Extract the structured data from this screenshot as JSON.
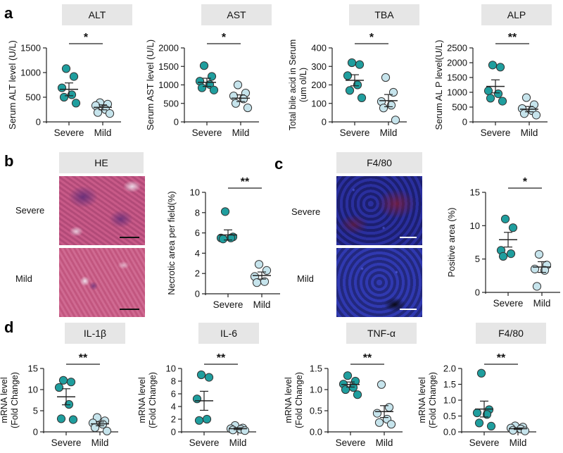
{
  "panel_labels": {
    "a": "a",
    "b": "b",
    "c": "c",
    "d": "d"
  },
  "colors": {
    "severe": "#1f9e9e",
    "mild": "#c6e4ec",
    "stroke": "#333333",
    "he_tissue": "#b24a78",
    "he_dark": "#5c2a78",
    "fl_blue": "#2a2f9e",
    "fl_red": "#7a1a2a"
  },
  "micrographs": {
    "he": {
      "title": "HE",
      "rows": [
        "Severe",
        "Mild"
      ]
    },
    "f480": {
      "title": "F4/80",
      "rows": [
        "Severe",
        "Mild"
      ]
    }
  },
  "chart_data": [
    {
      "id": "alt",
      "type": "scatter",
      "title": "ALT",
      "ylabel": "Serum ALT level  (U/L)",
      "ylabel2": "",
      "categories": [
        "Severe",
        "Mild"
      ],
      "ylim": [
        0,
        1500
      ],
      "yticks": [
        0,
        500,
        1000,
        1500
      ],
      "yticklabels": [
        "0",
        "500",
        "1000",
        "1500"
      ],
      "significance": "*",
      "series": [
        {
          "name": "Severe",
          "values": [
            1080,
            920,
            690,
            550,
            500,
            380
          ],
          "mean": 660,
          "sem": 130
        },
        {
          "name": "Mild",
          "values": [
            390,
            360,
            330,
            250,
            190,
            170
          ],
          "mean": 295,
          "sem": 50
        }
      ]
    },
    {
      "id": "ast",
      "type": "scatter",
      "title": "AST",
      "ylabel": "Serum AST level (U/L)",
      "ylabel2": "",
      "categories": [
        "Severe",
        "Mild"
      ],
      "ylim": [
        0,
        2000
      ],
      "yticks": [
        0,
        500,
        1000,
        1500,
        2000
      ],
      "yticklabels": [
        "0",
        "500",
        "1000",
        "1500",
        "2000"
      ],
      "significance": "*",
      "series": [
        {
          "name": "Severe",
          "values": [
            1520,
            1230,
            1100,
            1010,
            920,
            860
          ],
          "mean": 1070,
          "sem": 110
        },
        {
          "name": "Mild",
          "values": [
            1000,
            780,
            700,
            620,
            500,
            380
          ],
          "mean": 640,
          "sem": 90
        }
      ]
    },
    {
      "id": "tba",
      "type": "scatter",
      "title": "TBA",
      "ylabel": "Total bile acid in Serum",
      "ylabel2": "(um ol/L)",
      "categories": [
        "Severe",
        "Mild"
      ],
      "ylim": [
        0,
        400
      ],
      "yticks": [
        0,
        100,
        200,
        300,
        400
      ],
      "yticklabels": [
        "0",
        "100",
        "200",
        "300",
        "400"
      ],
      "significance": "*",
      "series": [
        {
          "name": "Severe",
          "values": [
            320,
            310,
            250,
            200,
            170,
            130
          ],
          "mean": 225,
          "sem": 30
        },
        {
          "name": "Mild",
          "values": [
            240,
            160,
            110,
            90,
            75,
            10
          ],
          "mean": 115,
          "sem": 33
        }
      ]
    },
    {
      "id": "alp",
      "type": "scatter",
      "title": "ALP",
      "ylabel": "Serum AL P level(U/L)",
      "ylabel2": "",
      "categories": [
        "Severe",
        "Mild"
      ],
      "ylim": [
        0,
        2500
      ],
      "yticks": [
        0,
        500,
        1000,
        1500,
        2000,
        2500
      ],
      "yticklabels": [
        "0",
        "500",
        "1000",
        "1500",
        "2000",
        "2500"
      ],
      "significance": "**",
      "series": [
        {
          "name": "Severe",
          "values": [
            1920,
            1850,
            1050,
            950,
            800,
            700
          ],
          "mean": 1200,
          "sem": 220
        },
        {
          "name": "Mild",
          "values": [
            820,
            580,
            450,
            380,
            280,
            230
          ],
          "mean": 430,
          "sem": 90
        }
      ]
    },
    {
      "id": "he_necrotic",
      "type": "scatter",
      "title": "",
      "ylabel": "Necrotic area per field(%)",
      "ylabel2": "",
      "categories": [
        "Severe",
        "Mild"
      ],
      "ylim": [
        0,
        10
      ],
      "yticks": [
        0,
        2,
        4,
        6,
        8,
        10
      ],
      "yticklabels": [
        "0",
        "2",
        "4",
        "6",
        "8",
        "10"
      ],
      "significance": "**",
      "series": [
        {
          "name": "Severe",
          "values": [
            8.1,
            5.6,
            5.5,
            5.5,
            5.4
          ],
          "mean": 5.8,
          "sem": 0.5
        },
        {
          "name": "Mild",
          "values": [
            2.9,
            2.3,
            1.7,
            1.2,
            1.1
          ],
          "mean": 1.8,
          "sem": 0.35
        }
      ]
    },
    {
      "id": "f480_positive",
      "type": "scatter",
      "title": "",
      "ylabel": "Positive area (%)",
      "ylabel2": "",
      "categories": [
        "Severe",
        "Mild"
      ],
      "ylim": [
        0,
        15
      ],
      "yticks": [
        0,
        5,
        10,
        15
      ],
      "yticklabels": [
        "0",
        "5",
        "10",
        "15"
      ],
      "significance": "*",
      "series": [
        {
          "name": "Severe",
          "values": [
            11,
            9.7,
            6.3,
            5.8,
            5.4
          ],
          "mean": 7.9,
          "sem": 1.1
        },
        {
          "name": "Mild",
          "values": [
            5.7,
            4.1,
            3.5,
            3.3,
            0.9
          ],
          "mean": 3.8,
          "sem": 0.8
        }
      ]
    },
    {
      "id": "il1b",
      "type": "scatter",
      "title": "IL-1β",
      "ylabel": "mRNA level",
      "ylabel2": "(Fold Change)",
      "categories": [
        "Severe",
        "Mild"
      ],
      "ylim": [
        0,
        15
      ],
      "yticks": [
        0,
        5,
        10,
        15
      ],
      "yticklabels": [
        "0",
        "5",
        "10",
        "15"
      ],
      "significance": "**",
      "series": [
        {
          "name": "Severe",
          "values": [
            12.2,
            11.8,
            10.5,
            6.5,
            3.1,
            2.9
          ],
          "mean": 8.3,
          "sem": 1.9
        },
        {
          "name": "Mild",
          "values": [
            3.4,
            2.6,
            2.1,
            1.8,
            1.0,
            0.2
          ],
          "mean": 1.9,
          "sem": 0.45
        }
      ]
    },
    {
      "id": "il6",
      "type": "scatter",
      "title": "IL-6",
      "ylabel": "mRNA level",
      "ylabel2": "(Fold Change)",
      "categories": [
        "Severe",
        "Mild"
      ],
      "ylim": [
        0,
        10
      ],
      "yticks": [
        0,
        2,
        4,
        6,
        8,
        10
      ],
      "yticklabels": [
        "0",
        "2",
        "4",
        "6",
        "8",
        "10"
      ],
      "significance": "**",
      "series": [
        {
          "name": "Severe",
          "values": [
            9.0,
            8.6,
            5.2,
            2.0,
            1.8
          ],
          "mean": 4.9,
          "sem": 1.5
        },
        {
          "name": "Mild",
          "values": [
            1.0,
            0.6,
            0.5,
            0.4,
            0.3,
            0.2
          ],
          "mean": 0.5,
          "sem": 0.15
        }
      ]
    },
    {
      "id": "tnfa",
      "type": "scatter",
      "title": "TNF-α",
      "ylabel": "mRNA level",
      "ylabel2": "(Fold Change)",
      "categories": [
        "Severe",
        "Mild"
      ],
      "ylim": [
        0,
        1.5
      ],
      "yticks": [
        0,
        0.5,
        1.0,
        1.5
      ],
      "yticklabels": [
        "0.0",
        "0.5",
        "1.0",
        "1.5"
      ],
      "significance": "**",
      "series": [
        {
          "name": "Severe",
          "values": [
            1.33,
            1.2,
            1.13,
            1.05,
            1.0,
            0.88
          ],
          "mean": 1.12,
          "sem": 0.06
        },
        {
          "name": "Mild",
          "values": [
            1.12,
            0.58,
            0.44,
            0.3,
            0.22,
            0.18
          ],
          "mean": 0.48,
          "sem": 0.14
        }
      ]
    },
    {
      "id": "f480_mrna",
      "type": "scatter",
      "title": "F4/80",
      "ylabel": "mRNA level",
      "ylabel2": "(Fold Change)",
      "categories": [
        "Severe",
        "Mild"
      ],
      "ylim": [
        0,
        2.0
      ],
      "yticks": [
        0,
        0.5,
        1.0,
        1.5,
        2.0
      ],
      "yticklabels": [
        "0.0",
        "0.5",
        "1.0",
        "1.5",
        "2.0"
      ],
      "significance": "**",
      "series": [
        {
          "name": "Severe",
          "values": [
            1.85,
            0.7,
            0.6,
            0.55,
            0.28,
            0.18
          ],
          "mean": 0.72,
          "sem": 0.25
        },
        {
          "name": "Mild",
          "values": [
            0.19,
            0.15,
            0.12,
            0.09,
            0.05,
            0.03
          ],
          "mean": 0.1,
          "sem": 0.025
        }
      ]
    }
  ]
}
